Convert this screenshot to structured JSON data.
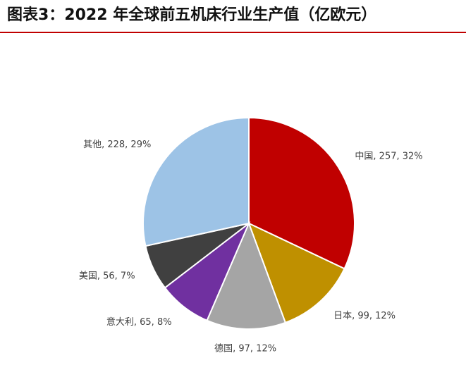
{
  "chart_data": {
    "type": "pie",
    "title": "图表3：2022 年全球前五机床行业生产值（亿欧元）",
    "categories": [
      "中国",
      "日本",
      "德国",
      "意大利",
      "美国",
      "其他"
    ],
    "values": [
      257,
      99,
      97,
      65,
      56,
      228
    ],
    "value_labels": [
      "中国, 257, 32%",
      "日本, 99, 12%",
      "德国, 97, 12%",
      "意大利, 65, 8%",
      "美国, 56, 7%",
      "其他, 228, 29%"
    ],
    "colors": [
      "#C00000",
      "#BF9000",
      "#A5A5A5",
      "#7030A0",
      "#404040",
      "#9DC3E6"
    ]
  }
}
